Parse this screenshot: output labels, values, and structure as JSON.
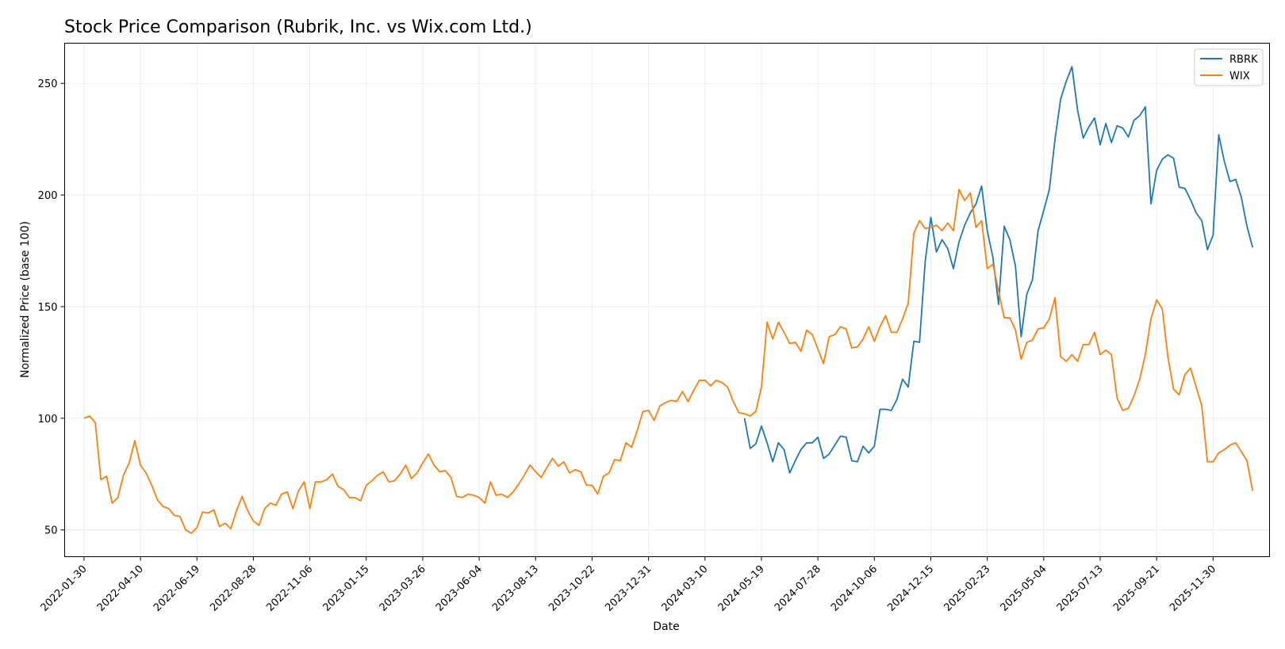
{
  "chart_data": {
    "type": "line",
    "title": "Stock Price Comparison (Rubrik, Inc. vs Wix.com Ltd.)",
    "xlabel": "Date",
    "ylabel": "Normalized Price (base 100)",
    "x_ticks": [
      "2022-01-30",
      "2022-04-10",
      "2022-06-19",
      "2022-08-28",
      "2022-11-06",
      "2023-01-15",
      "2023-03-26",
      "2023-06-04",
      "2023-08-13",
      "2023-10-22",
      "2023-12-31",
      "2024-03-10",
      "2024-05-19",
      "2024-07-28",
      "2024-10-06",
      "2024-12-15",
      "2025-02-23",
      "2025-05-04",
      "2025-07-13",
      "2025-09-21",
      "2025-11-30"
    ],
    "xlim": [
      "2022-01-06",
      "2026-02-08"
    ],
    "y_ticks": [
      50,
      100,
      150,
      200,
      250
    ],
    "ylim": [
      38,
      268
    ],
    "grid": true,
    "legend_position": "upper right",
    "series": [
      {
        "name": "RBRK",
        "color": "#1f77b4",
        "start": "2024-04-28",
        "step_days": 7,
        "values": [
          100.0,
          86.5,
          88.5,
          96.5,
          89.0,
          80.5,
          89.0,
          86.0,
          75.5,
          81.0,
          86.0,
          89.0,
          89.0,
          91.5,
          82.0,
          84.0,
          88.0,
          92.0,
          91.5,
          81.0,
          80.5,
          87.5,
          84.5,
          87.5,
          104.0,
          104.0,
          103.5,
          108.5,
          117.5,
          114.0,
          134.5,
          134.0,
          170.0,
          190.0,
          174.5,
          180.0,
          176.0,
          167.0,
          179.0,
          186.5,
          192.0,
          196.0,
          204.0,
          184.0,
          172.0,
          151.0,
          186.0,
          180.0,
          168.0,
          136.5,
          155.5,
          162.0,
          184.0,
          193.0,
          202.5,
          225.0,
          243.0,
          251.0,
          257.5,
          238.0,
          225.5,
          230.5,
          234.5,
          222.5,
          232.0,
          223.5,
          231.0,
          230.0,
          226.0,
          233.5,
          235.5,
          239.5,
          196.0,
          211.0,
          216.0,
          218.0,
          216.5,
          203.5,
          203.0,
          198.0,
          192.0,
          188.5,
          175.5,
          182.0,
          227.0,
          215.0,
          206.0,
          207.0,
          199.0,
          186.0,
          176.5
        ]
      },
      {
        "name": "WIX",
        "color": "#ff7f0e",
        "start": "2022-01-30",
        "step_days": 7,
        "values": [
          100.0,
          101.0,
          98.0,
          72.5,
          74.0,
          62.0,
          64.5,
          74.5,
          80.0,
          90.0,
          79.0,
          75.5,
          70.0,
          63.5,
          60.5,
          59.5,
          56.5,
          56.0,
          50.0,
          48.5,
          51.0,
          58.0,
          57.5,
          59.0,
          51.5,
          53.0,
          50.5,
          58.5,
          65.0,
          58.5,
          54.0,
          52.0,
          59.5,
          62.0,
          61.0,
          66.0,
          67.0,
          59.5,
          67.5,
          71.5,
          59.5,
          71.5,
          71.5,
          72.5,
          75.0,
          69.5,
          68.0,
          64.5,
          64.5,
          63.0,
          70.0,
          72.0,
          74.5,
          76.0,
          71.5,
          72.0,
          75.0,
          79.0,
          73.0,
          75.5,
          80.0,
          84.0,
          79.0,
          76.0,
          76.5,
          73.5,
          65.0,
          64.5,
          66.0,
          65.5,
          64.5,
          62.0,
          71.5,
          65.5,
          66.0,
          64.5,
          67.0,
          70.5,
          74.5,
          79.0,
          76.0,
          73.5,
          78.0,
          82.0,
          78.5,
          80.5,
          75.5,
          77.0,
          76.0,
          70.0,
          70.0,
          66.0,
          74.0,
          75.5,
          81.5,
          81.0,
          89.0,
          87.0,
          94.5,
          103.0,
          103.5,
          99.0,
          105.5,
          107.0,
          108.0,
          107.5,
          112.0,
          107.5,
          112.5,
          117.0,
          117.0,
          114.5,
          117.0,
          116.0,
          114.0,
          107.5,
          102.5,
          102.0,
          101.0,
          103.0,
          114.0,
          143.0,
          135.5,
          143.0,
          138.5,
          133.5,
          134.0,
          130.0,
          139.5,
          137.5,
          131.0,
          124.5,
          136.5,
          137.5,
          141.0,
          140.0,
          131.5,
          132.0,
          135.5,
          141.0,
          134.5,
          141.0,
          146.0,
          138.5,
          138.5,
          144.5,
          151.5,
          183.0,
          188.5,
          185.0,
          185.5,
          186.5,
          184.0,
          187.5,
          184.0,
          202.5,
          197.5,
          201.0,
          185.5,
          188.5,
          167.0,
          169.0,
          157.0,
          145.0,
          145.0,
          139.5,
          126.5,
          134.0,
          135.0,
          140.0,
          140.5,
          144.5,
          154.0,
          127.5,
          125.5,
          128.5,
          125.5,
          133.0,
          133.0,
          138.5,
          128.5,
          130.5,
          128.5,
          109.0,
          103.5,
          104.5,
          110.0,
          117.5,
          128.5,
          144.5,
          153.0,
          149.0,
          127.5,
          113.0,
          110.5,
          119.5,
          122.5,
          114.0,
          105.5,
          80.5,
          80.5,
          84.5,
          86.0,
          88.0,
          89.0,
          85.0,
          81.0,
          67.5
        ]
      }
    ]
  }
}
